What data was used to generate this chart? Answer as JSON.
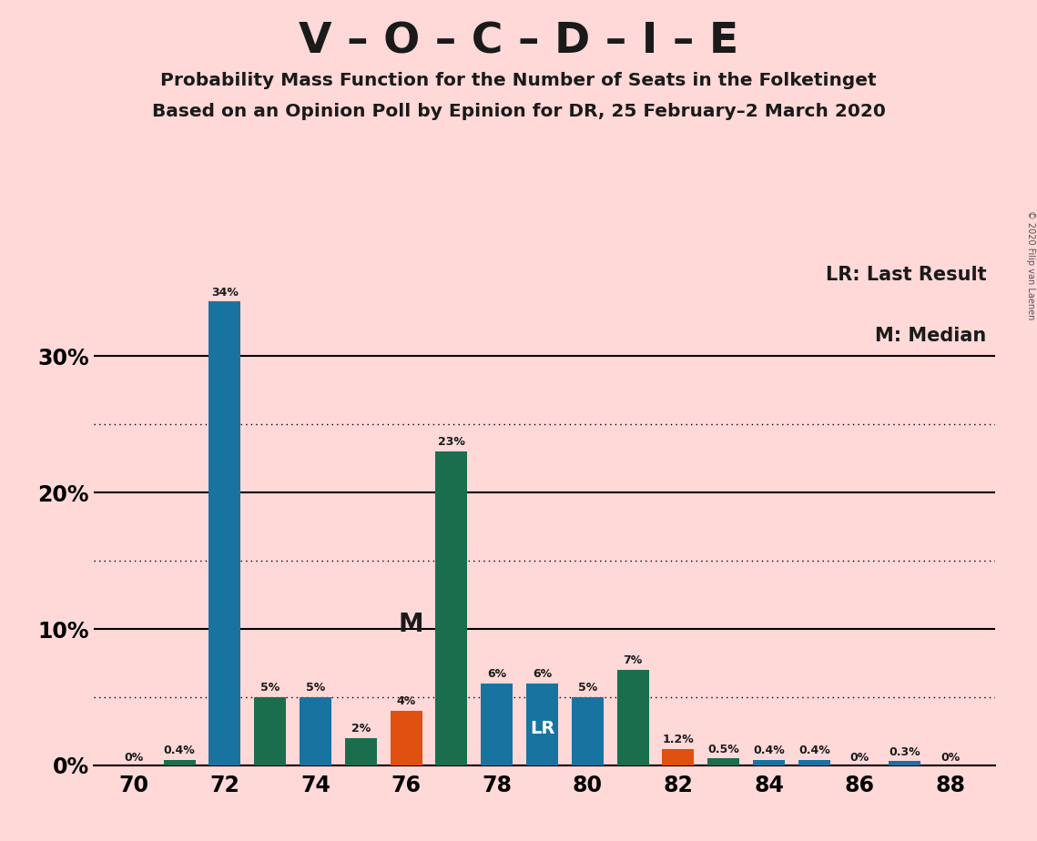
{
  "title": "V – O – C – D – I – E",
  "subtitle1": "Probability Mass Function for the Number of Seats in the Folketinget",
  "subtitle2": "Based on an Opinion Poll by Epinion for DR, 25 February–2 March 2020",
  "copyright": "© 2020 Filip van Laenen",
  "seats": [
    70,
    71,
    72,
    73,
    74,
    75,
    76,
    77,
    78,
    79,
    80,
    81,
    82,
    83,
    84,
    85,
    86,
    87,
    88
  ],
  "values": [
    0.0,
    0.4,
    34.0,
    5.0,
    5.0,
    2.0,
    4.0,
    23.0,
    6.0,
    6.0,
    5.0,
    7.0,
    1.2,
    0.5,
    0.4,
    0.4,
    0.0,
    0.3,
    0.0
  ],
  "colors": [
    "#1873a0",
    "#1a6e4e",
    "#1873a0",
    "#1a6e4e",
    "#1873a0",
    "#1a6e4e",
    "#e05010",
    "#1a6e4e",
    "#1873a0",
    "#1873a0",
    "#1873a0",
    "#1a6e4e",
    "#e05010",
    "#1a6e4e",
    "#1873a0",
    "#1873a0",
    "#1873a0",
    "#1873a0",
    "#1873a0"
  ],
  "labels": [
    "0%",
    "0.4%",
    "34%",
    "5%",
    "5%",
    "2%",
    "4%",
    "23%",
    "6%",
    "6%",
    "5%",
    "7%",
    "1.2%",
    "0.5%",
    "0.4%",
    "0.4%",
    "0%",
    "0.3%",
    "0%"
  ],
  "median_seat": 77,
  "lr_seat": 79,
  "background_color": "#ffd8d8",
  "bar_width": 0.7,
  "yticks": [
    0,
    10,
    20,
    30
  ],
  "ylim": [
    0,
    37
  ],
  "solid_gridlines": [
    0,
    10,
    20,
    30
  ],
  "dotted_gridlines": [
    5,
    15,
    25
  ],
  "legend_lr": "LR: Last Result",
  "legend_m": "M: Median",
  "lr_text_color": "#ffffff",
  "m_text_color": "#1a1a1a"
}
